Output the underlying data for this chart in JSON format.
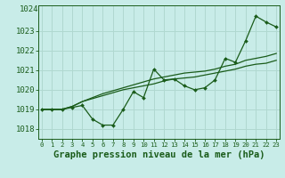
{
  "title": "Graphe pression niveau de la mer (hPa)",
  "background_color": "#c8ece8",
  "grid_color": "#b0d8d0",
  "line_color": "#1a5c1a",
  "hours": [
    0,
    1,
    2,
    3,
    4,
    5,
    6,
    7,
    8,
    9,
    10,
    11,
    12,
    13,
    14,
    15,
    16,
    17,
    18,
    19,
    20,
    21,
    22,
    23
  ],
  "series1": [
    1019.0,
    1019.0,
    1019.0,
    1019.1,
    1019.2,
    1018.5,
    1018.2,
    1018.2,
    1019.0,
    1019.9,
    1019.6,
    1021.05,
    1020.5,
    1020.55,
    1020.2,
    1020.0,
    1020.1,
    1020.5,
    1021.6,
    1021.4,
    1022.5,
    1023.75,
    1023.45,
    1023.2
  ],
  "series2": [
    1019.0,
    1019.0,
    1019.0,
    1019.15,
    1019.4,
    1019.55,
    1019.7,
    1019.85,
    1020.0,
    1020.1,
    1020.2,
    1020.3,
    1020.45,
    1020.55,
    1020.6,
    1020.65,
    1020.75,
    1020.85,
    1020.95,
    1021.05,
    1021.2,
    1021.3,
    1021.35,
    1021.5
  ],
  "series3": [
    1019.0,
    1019.0,
    1019.0,
    1019.15,
    1019.4,
    1019.6,
    1019.8,
    1019.95,
    1020.1,
    1020.25,
    1020.4,
    1020.55,
    1020.65,
    1020.75,
    1020.85,
    1020.9,
    1020.95,
    1021.05,
    1021.2,
    1021.3,
    1021.5,
    1021.6,
    1021.7,
    1021.85
  ],
  "ylim": [
    1017.5,
    1024.3
  ],
  "yticks": [
    1018,
    1019,
    1020,
    1021,
    1022,
    1023
  ],
  "top_label": "1024",
  "ylabel_fontsize": 6.5,
  "xtick_fontsize": 5.2,
  "title_fontsize": 7.5
}
